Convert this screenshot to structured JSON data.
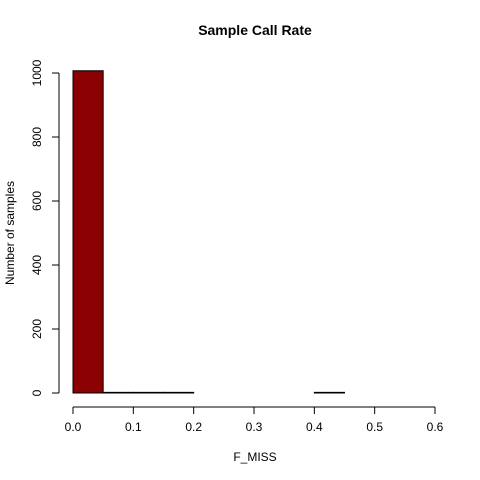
{
  "chart_data": {
    "type": "bar",
    "title": "Sample Call Rate",
    "xlabel": "F_MISS",
    "ylabel": "Number of samples",
    "bins": [
      {
        "x0": 0.0,
        "x1": 0.05,
        "count": 1007
      },
      {
        "x0": 0.05,
        "x1": 0.1,
        "count": 2
      },
      {
        "x0": 0.1,
        "x1": 0.15,
        "count": 2
      },
      {
        "x0": 0.15,
        "x1": 0.2,
        "count": 2
      },
      {
        "x0": 0.2,
        "x1": 0.25,
        "count": 0
      },
      {
        "x0": 0.25,
        "x1": 0.3,
        "count": 0
      },
      {
        "x0": 0.3,
        "x1": 0.35,
        "count": 0
      },
      {
        "x0": 0.35,
        "x1": 0.4,
        "count": 0
      },
      {
        "x0": 0.4,
        "x1": 0.45,
        "count": 2
      },
      {
        "x0": 0.45,
        "x1": 0.5,
        "count": 0
      },
      {
        "x0": 0.5,
        "x1": 0.55,
        "count": 0
      },
      {
        "x0": 0.55,
        "x1": 0.6,
        "count": 0
      }
    ],
    "xlim": [
      0.0,
      0.6
    ],
    "ylim": [
      0,
      1000
    ],
    "x_ticks": [
      "0.0",
      "0.1",
      "0.2",
      "0.3",
      "0.4",
      "0.5",
      "0.6"
    ],
    "y_ticks": [
      "0",
      "200",
      "400",
      "600",
      "800",
      "1000"
    ],
    "bar_color": "#8B0000",
    "grid": false,
    "legend": "none"
  }
}
